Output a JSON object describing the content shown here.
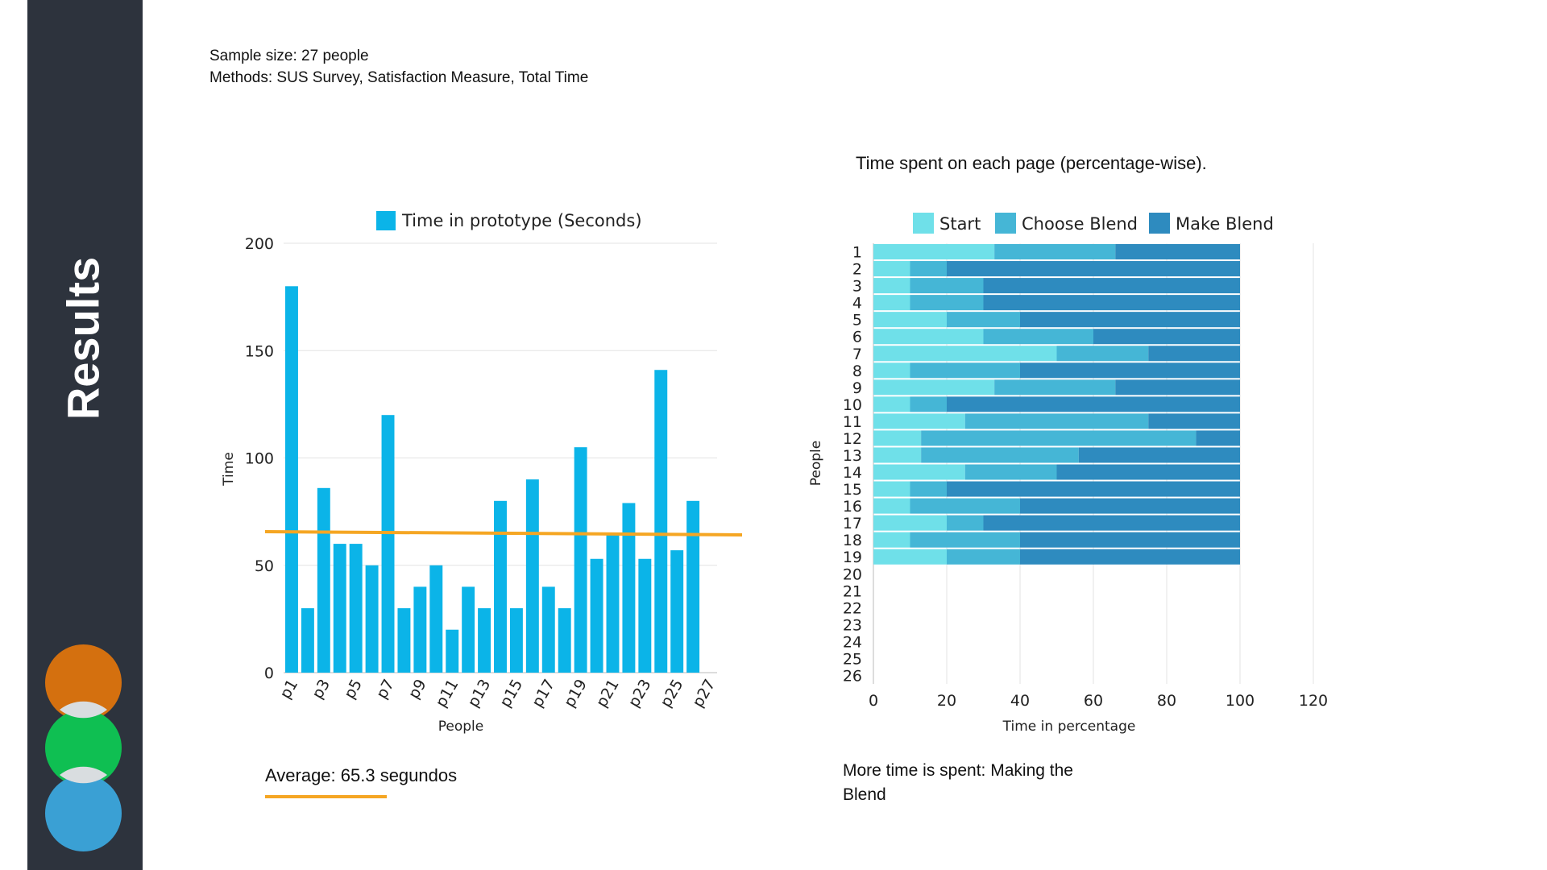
{
  "slide": {
    "title": "Results",
    "meta_lines": [
      "Sample size: 27 people",
      "Methods: SUS Survey, Satisfaction Measure, Total Time"
    ],
    "right_title": "Time spent on each page (percentage-wise).",
    "average_text": "Average: 65.3 segundos",
    "conclusion": "More time is spent: Making the Blend",
    "colors": {
      "sidebar": "#2d333d",
      "circle_1": "#d4700f",
      "circle_2": "#0fbf52",
      "circle_3": "#3aa0d4"
    }
  },
  "chart_data": [
    {
      "type": "bar",
      "legend": [
        "Time in prototype (Seconds)"
      ],
      "series": [
        {
          "name": "Time in prototype (Seconds)",
          "values": [
            180,
            30,
            86,
            60,
            60,
            50,
            120,
            30,
            40,
            50,
            20,
            40,
            30,
            80,
            30,
            90,
            40,
            30,
            105,
            53,
            64,
            79,
            53,
            141,
            57,
            80,
            0
          ],
          "color": "#0bb4e8"
        }
      ],
      "categories": [
        "p1",
        "p2",
        "p3",
        "p4",
        "p5",
        "p6",
        "p7",
        "p8",
        "p9",
        "p10",
        "p11",
        "p12",
        "p13",
        "p14",
        "p15",
        "p16",
        "p17",
        "p18",
        "p19",
        "p20",
        "p21",
        "p22",
        "p23",
        "p24",
        "p25",
        "p26",
        "p27"
      ],
      "visible_tick_labels": [
        "p1",
        "p3",
        "p5",
        "p7",
        "p9",
        "p11",
        "p13",
        "p15",
        "p17",
        "p19",
        "p21",
        "p23",
        "p25",
        "p27"
      ],
      "xlabel": "People",
      "ylabel": "Time",
      "ylim": [
        0,
        200
      ],
      "yticks": [
        0,
        50,
        100,
        150,
        200
      ],
      "average_line": {
        "value": 65.3,
        "color": "#f5a623"
      },
      "grid": true,
      "legend_position": "top"
    },
    {
      "type": "bar",
      "orientation": "horizontal",
      "stacked": true,
      "categories": [
        "1",
        "2",
        "3",
        "4",
        "5",
        "6",
        "7",
        "8",
        "9",
        "10",
        "11",
        "12",
        "13",
        "14",
        "15",
        "16",
        "17",
        "18",
        "19",
        "20",
        "21",
        "22",
        "23",
        "24",
        "25",
        "26"
      ],
      "series": [
        {
          "name": "Start",
          "color": "#6fe0e9",
          "values": [
            33,
            10,
            10,
            10,
            20,
            30,
            50,
            10,
            33,
            10,
            25,
            13,
            13,
            25,
            10,
            10,
            20,
            10,
            20,
            0,
            0,
            0,
            0,
            0,
            0,
            0
          ]
        },
        {
          "name": "Choose Blend",
          "color": "#45b6d6",
          "values": [
            33,
            10,
            20,
            20,
            20,
            30,
            25,
            30,
            33,
            10,
            50,
            75,
            43,
            25,
            10,
            30,
            10,
            30,
            20,
            0,
            0,
            0,
            0,
            0,
            0,
            0
          ]
        },
        {
          "name": "Make Blend",
          "color": "#2e8bbf",
          "values": [
            34,
            80,
            70,
            70,
            60,
            40,
            25,
            60,
            34,
            80,
            25,
            12,
            44,
            50,
            80,
            60,
            70,
            60,
            60,
            0,
            0,
            0,
            0,
            0,
            0,
            0
          ]
        }
      ],
      "xlabel": "Time in percentage",
      "ylabel": "People",
      "xlim": [
        0,
        120
      ],
      "xticks": [
        0,
        20,
        40,
        60,
        80,
        100,
        120
      ],
      "grid": true,
      "legend_position": "top"
    }
  ]
}
